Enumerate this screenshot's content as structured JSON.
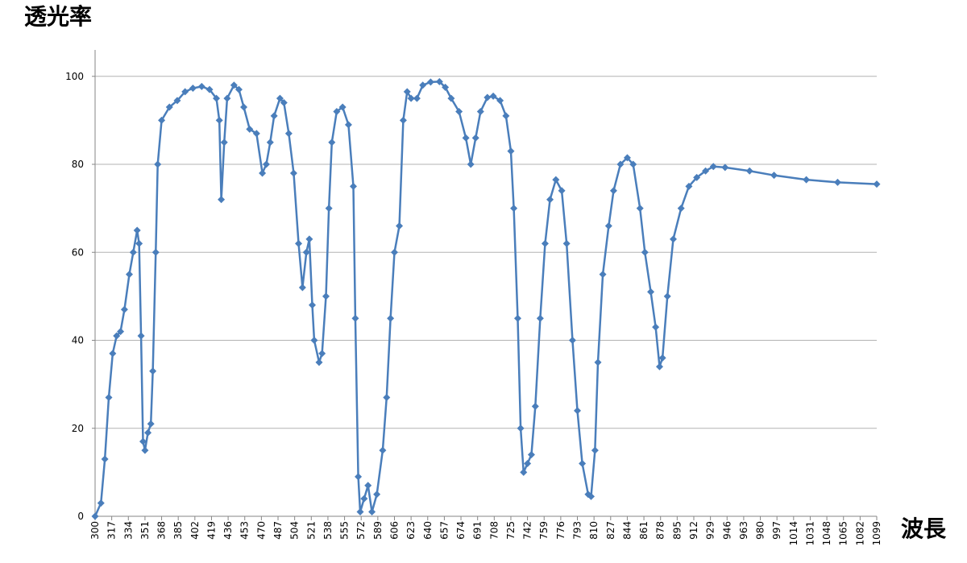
{
  "chart_data": {
    "type": "line",
    "y_label": "透光率",
    "x_label": "波長",
    "x": [
      300,
      306,
      310,
      314,
      318,
      322,
      326,
      330,
      335,
      339,
      343,
      345,
      347,
      349,
      351,
      354,
      357,
      359,
      362,
      364,
      368,
      376,
      384,
      392,
      400,
      409,
      417,
      424,
      427,
      429,
      432,
      435,
      442,
      447,
      452,
      458,
      465,
      471,
      475,
      479,
      483,
      489,
      493,
      498,
      503,
      508,
      512,
      516,
      519,
      522,
      524,
      529,
      532,
      536,
      539,
      542,
      547,
      553,
      559,
      564,
      566,
      569,
      571,
      575,
      579,
      583,
      588,
      594,
      598,
      602,
      606,
      611,
      615,
      619,
      623,
      629,
      635,
      643,
      652,
      658,
      664,
      672,
      679,
      684,
      689,
      694,
      701,
      707,
      714,
      720,
      725,
      728,
      732,
      735,
      738,
      742,
      746,
      750,
      755,
      760,
      765,
      771,
      777,
      782,
      788,
      793,
      798,
      804,
      807,
      811,
      814,
      819,
      825,
      830,
      837,
      844,
      850,
      857,
      862,
      868,
      873,
      877,
      880,
      885,
      891,
      899,
      907,
      915,
      924,
      932,
      944,
      969,
      994,
      1027,
      1059,
      1099
    ],
    "series": [
      {
        "name": "透光率",
        "color": "#4a7ebb",
        "values": [
          0,
          3,
          13,
          27,
          37,
          41,
          42,
          47,
          55,
          60,
          65,
          62,
          41,
          17,
          15,
          19,
          21,
          33,
          60,
          80,
          90,
          93,
          94.5,
          96.5,
          97.3,
          97.7,
          97,
          95,
          90,
          72,
          85,
          95,
          98,
          97,
          93,
          88,
          87,
          78,
          80,
          85,
          91,
          95,
          94,
          87,
          78,
          62,
          52,
          60,
          63,
          48,
          40,
          35,
          37,
          50,
          70,
          85,
          92,
          93,
          89,
          75,
          45,
          9,
          1,
          4,
          7,
          1,
          5,
          15,
          27,
          45,
          60,
          66,
          90,
          96.5,
          95,
          95,
          98,
          98.7,
          98.8,
          97.5,
          95,
          92,
          86,
          80,
          86,
          92,
          95.2,
          95.5,
          94.5,
          91,
          83,
          70,
          45,
          20,
          10,
          12,
          14,
          25,
          45,
          62,
          72,
          76.5,
          74,
          62,
          40,
          24,
          12,
          5,
          4.5,
          15,
          35,
          55,
          66,
          74,
          80,
          81.5,
          80,
          70,
          60,
          51,
          43,
          34,
          36,
          50,
          63,
          70,
          75,
          77,
          78.5,
          79.5,
          79.3,
          78.5,
          77.5,
          76.5,
          75.9,
          75.5
        ]
      }
    ],
    "xlim": [
      300,
      1099
    ],
    "xticks": [
      300,
      317,
      334,
      351,
      368,
      385,
      402,
      419,
      436,
      453,
      470,
      487,
      504,
      521,
      538,
      555,
      572,
      589,
      606,
      623,
      640,
      657,
      674,
      691,
      708,
      725,
      742,
      759,
      776,
      793,
      810,
      827,
      844,
      861,
      878,
      895,
      912,
      929,
      946,
      963,
      980,
      997,
      1014,
      1031,
      1048,
      1065,
      1082,
      1099
    ],
    "ylim": [
      0,
      106
    ],
    "yticks": [
      0,
      20,
      40,
      60,
      80,
      100
    ],
    "grid": true
  }
}
